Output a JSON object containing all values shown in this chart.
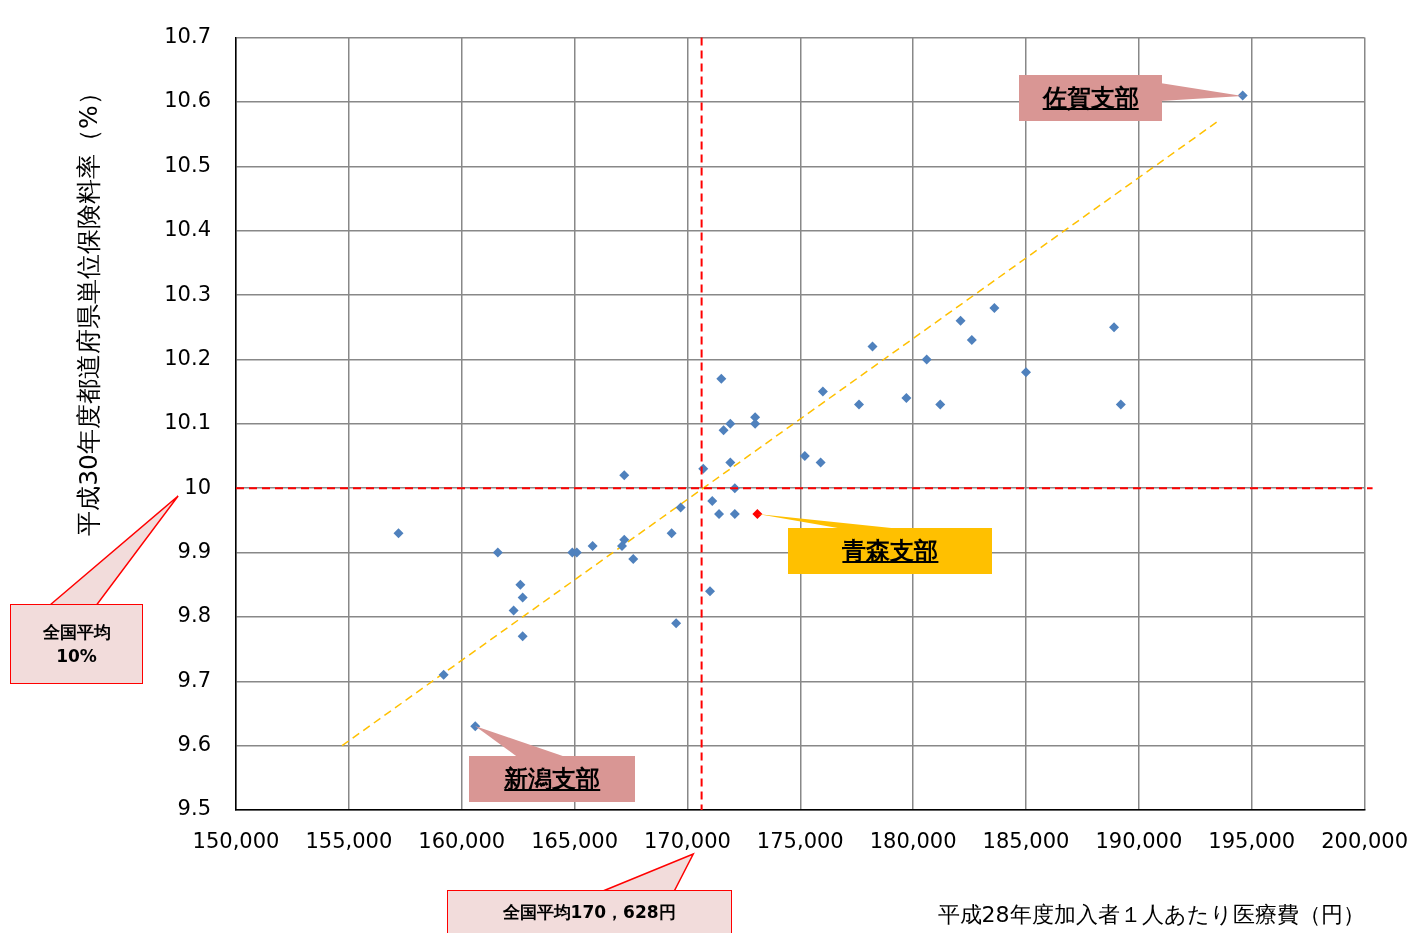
{
  "chart_data": {
    "type": "scatter",
    "xlabel": "平成28年度加入者１人あたり医療費（円）",
    "ylabel": "平成30年度都道府県単位保険料率（%）",
    "xlim": [
      150000,
      200000
    ],
    "ylim": [
      9.5,
      10.7
    ],
    "xticks": [
      {
        "value": 150000,
        "label": "150,000"
      },
      {
        "value": 155000,
        "label": "155,000"
      },
      {
        "value": 160000,
        "label": "160,000"
      },
      {
        "value": 165000,
        "label": "165,000"
      },
      {
        "value": 170000,
        "label": "170,000"
      },
      {
        "value": 175000,
        "label": "175,000"
      },
      {
        "value": 180000,
        "label": "180,000"
      },
      {
        "value": 185000,
        "label": "185,000"
      },
      {
        "value": 190000,
        "label": "190,000"
      },
      {
        "value": 195000,
        "label": "195,000"
      },
      {
        "value": 200000,
        "label": "200,000"
      }
    ],
    "yticks": [
      9.5,
      9.6,
      9.7,
      9.8,
      9.9,
      10,
      10.1,
      10.2,
      10.3,
      10.4,
      10.5,
      10.6,
      10.7
    ],
    "grid": true,
    "marker": "diamond",
    "legend": false,
    "series": [
      {
        "color": "#4f81bd",
        "x": [
          157200,
          159200,
          160600,
          161600,
          162300,
          162600,
          162700,
          162700,
          164900,
          165100,
          165800,
          167200,
          167100,
          167600,
          167200,
          169300,
          169500,
          169700,
          170700,
          171000,
          171100,
          171400,
          172100,
          172100,
          171500,
          171600,
          171900,
          171900,
          173000,
          173000,
          175200,
          175900,
          176000,
          177600,
          178200,
          179700,
          180600,
          181200,
          182100,
          182600,
          183600,
          185000,
          188900,
          189200,
          194600
        ],
        "values": [
          9.93,
          9.71,
          9.63,
          9.9,
          9.81,
          9.85,
          9.83,
          9.77,
          9.9,
          9.9,
          9.91,
          9.92,
          9.91,
          9.89,
          10.02,
          9.93,
          9.79,
          9.97,
          10.03,
          9.84,
          9.98,
          9.96,
          9.96,
          10.0,
          10.17,
          10.09,
          10.1,
          10.04,
          10.11,
          10.1,
          10.05,
          10.04,
          10.15,
          10.13,
          10.22,
          10.14,
          10.2,
          10.13,
          10.26,
          10.23,
          10.28,
          10.18,
          10.25,
          10.13,
          10.61
        ]
      },
      {
        "color": "#ff0000",
        "x": [
          173100
        ],
        "values": [
          9.96
        ]
      },
      {
        "type": "line",
        "color": "#ffc000",
        "line_style": "dashed",
        "marker": "none",
        "x": [
          154700,
          193500
        ],
        "values": [
          9.6,
          10.57
        ]
      }
    ],
    "ref_lines": [
      {
        "axis": "x",
        "value": 170628,
        "color": "#ff0000",
        "line_style": "dashed"
      },
      {
        "axis": "y",
        "value": 10,
        "color": "#ff0000",
        "line_style": "dashed"
      }
    ],
    "annotations": [
      {
        "text": "佐賀支部",
        "x": 194600,
        "y": 10.61
      },
      {
        "text": "青森支部",
        "x": 173100,
        "y": 9.96
      },
      {
        "text": "新潟支部",
        "x": 160600,
        "y": 9.63
      },
      "全国平均170，628円",
      "全国平均\n10%"
    ]
  }
}
